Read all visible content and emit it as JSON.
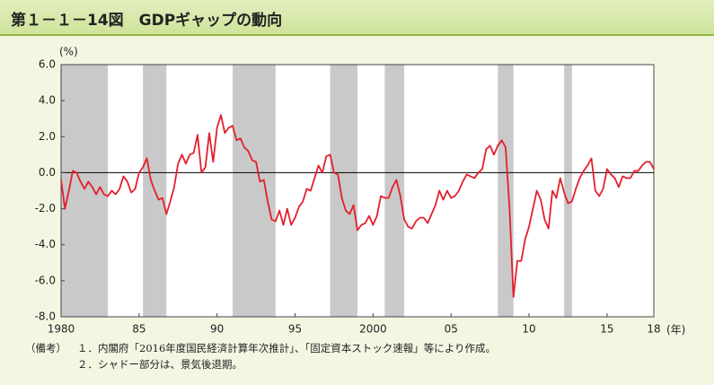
{
  "title": "第１－１－14図　GDPギャップの動向",
  "chart_data": {
    "type": "line",
    "y_unit": "(%)",
    "x_unit": "(年)",
    "color": "#e3202c",
    "shade_color": "#c9c9c9",
    "xlim": [
      1980,
      2018
    ],
    "xticks": [
      {
        "value": 1980,
        "label": "1980"
      },
      {
        "value": 1985,
        "label": "85"
      },
      {
        "value": 1990,
        "label": "90"
      },
      {
        "value": 1995,
        "label": "95"
      },
      {
        "value": 2000,
        "label": "2000"
      },
      {
        "value": 2005,
        "label": "05"
      },
      {
        "value": 2010,
        "label": "10"
      },
      {
        "value": 2015,
        "label": "15"
      },
      {
        "value": 2018,
        "label": "18"
      }
    ],
    "ylim": [
      -8,
      6
    ],
    "yticks": [
      {
        "value": 6,
        "label": "6.0"
      },
      {
        "value": 4,
        "label": "4.0"
      },
      {
        "value": 2,
        "label": "2.0"
      },
      {
        "value": 0,
        "label": "0.0"
      },
      {
        "value": -2,
        "label": "-2.0"
      },
      {
        "value": -4,
        "label": "-4.0"
      },
      {
        "value": -6,
        "label": "-6.0"
      },
      {
        "value": -8,
        "label": "-8.0"
      }
    ],
    "shaded_periods": [
      [
        1980.0,
        1983.0
      ],
      [
        1985.25,
        1986.75
      ],
      [
        1991.0,
        1993.75
      ],
      [
        1997.25,
        1999.0
      ],
      [
        2000.75,
        2002.0
      ],
      [
        2008.0,
        2009.0
      ],
      [
        2012.25,
        2012.75
      ]
    ],
    "x": [
      1980,
      1980.25,
      1980.5,
      1980.75,
      1981,
      1981.25,
      1981.5,
      1981.75,
      1982,
      1982.25,
      1982.5,
      1982.75,
      1983,
      1983.25,
      1983.5,
      1983.75,
      1984,
      1984.25,
      1984.5,
      1984.75,
      1985,
      1985.25,
      1985.5,
      1985.75,
      1986,
      1986.25,
      1986.5,
      1986.75,
      1987,
      1987.25,
      1987.5,
      1987.75,
      1988,
      1988.25,
      1988.5,
      1988.75,
      1989,
      1989.25,
      1989.5,
      1989.75,
      1990,
      1990.25,
      1990.5,
      1990.75,
      1991,
      1991.25,
      1991.5,
      1991.75,
      1992,
      1992.25,
      1992.5,
      1992.75,
      1993,
      1993.25,
      1993.5,
      1993.75,
      1994,
      1994.25,
      1994.5,
      1994.75,
      1995,
      1995.25,
      1995.5,
      1995.75,
      1996,
      1996.25,
      1996.5,
      1996.75,
      1997,
      1997.25,
      1997.5,
      1997.75,
      1998,
      1998.25,
      1998.5,
      1998.75,
      1999,
      1999.25,
      1999.5,
      1999.75,
      2000,
      2000.25,
      2000.5,
      2000.75,
      2001,
      2001.25,
      2001.5,
      2001.75,
      2002,
      2002.25,
      2002.5,
      2002.75,
      2003,
      2003.25,
      2003.5,
      2003.75,
      2004,
      2004.25,
      2004.5,
      2004.75,
      2005,
      2005.25,
      2005.5,
      2005.75,
      2006,
      2006.25,
      2006.5,
      2006.75,
      2007,
      2007.25,
      2007.5,
      2007.75,
      2008,
      2008.25,
      2008.5,
      2008.75,
      2009,
      2009.25,
      2009.5,
      2009.75,
      2010,
      2010.25,
      2010.5,
      2010.75,
      2011,
      2011.25,
      2011.5,
      2011.75,
      2012,
      2012.25,
      2012.5,
      2012.75,
      2013,
      2013.25,
      2013.5,
      2013.75,
      2014,
      2014.25,
      2014.5,
      2014.75,
      2015,
      2015.25,
      2015.5,
      2015.75,
      2016,
      2016.25,
      2016.5,
      2016.75,
      2017,
      2017.25,
      2017.5,
      2017.75,
      2018
    ],
    "values": [
      -0.4,
      -2.0,
      -1.0,
      0.1,
      0.0,
      -0.5,
      -0.9,
      -0.5,
      -0.8,
      -1.2,
      -0.8,
      -1.2,
      -1.3,
      -1.0,
      -1.2,
      -0.9,
      -0.2,
      -0.5,
      -1.1,
      -0.9,
      0.0,
      0.3,
      0.8,
      -0.4,
      -1.0,
      -1.5,
      -1.4,
      -2.3,
      -1.6,
      -0.8,
      0.5,
      1.0,
      0.5,
      1.0,
      1.1,
      2.1,
      0.0,
      0.3,
      2.2,
      0.6,
      2.5,
      3.2,
      2.2,
      2.5,
      2.6,
      1.8,
      1.9,
      1.4,
      1.2,
      0.7,
      0.6,
      -0.5,
      -0.4,
      -1.6,
      -2.6,
      -2.7,
      -2.1,
      -2.9,
      -2.0,
      -2.9,
      -2.5,
      -1.9,
      -1.6,
      -0.9,
      -1.0,
      -0.3,
      0.4,
      0.0,
      0.9,
      1.0,
      0.0,
      -0.1,
      -1.4,
      -2.1,
      -2.3,
      -1.8,
      -3.2,
      -2.9,
      -2.8,
      -2.4,
      -2.9,
      -2.4,
      -1.3,
      -1.4,
      -1.4,
      -0.8,
      -0.4,
      -1.3,
      -2.6,
      -3.0,
      -3.1,
      -2.7,
      -2.5,
      -2.5,
      -2.8,
      -2.3,
      -1.8,
      -1.0,
      -1.5,
      -1.0,
      -1.4,
      -1.3,
      -1.0,
      -0.5,
      -0.1,
      -0.2,
      -0.3,
      0.0,
      0.2,
      1.3,
      1.5,
      1.0,
      1.5,
      1.8,
      1.4,
      -2.0,
      -6.9,
      -4.9,
      -4.9,
      -3.7,
      -3.0,
      -2.0,
      -1.0,
      -1.5,
      -2.6,
      -3.1,
      -1.0,
      -1.4,
      -0.3,
      -1.1,
      -1.7,
      -1.6,
      -0.9,
      -0.3,
      0.1,
      0.4,
      0.8,
      -1.0,
      -1.3,
      -0.9,
      0.2,
      -0.1,
      -0.3,
      -0.8,
      -0.2,
      -0.3,
      -0.3,
      0.1,
      0.1,
      0.4,
      0.6,
      0.6,
      0.2
    ]
  },
  "notes": {
    "label": "（備考）",
    "items": [
      "１．内閣府「2016年度国民経済計算年次推計」、「固定資本ストック速報」等により作成。",
      "２．シャドー部分は、景気後退期。"
    ]
  }
}
